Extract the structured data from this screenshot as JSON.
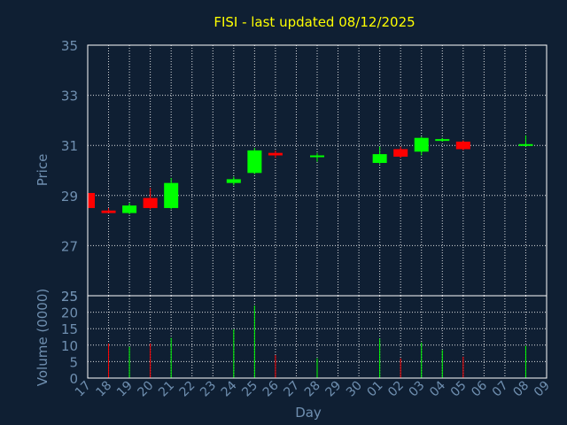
{
  "chart_data": {
    "type": "candlestick",
    "title": "FISI - last updated 08/12/2025",
    "xlabel": "Day",
    "ylabel": "Price",
    "volume_ylabel": "Volume (0000)",
    "x_ticks": [
      "17",
      "18",
      "19",
      "20",
      "21",
      "22",
      "23",
      "24",
      "25",
      "26",
      "27",
      "28",
      "29",
      "30",
      "01",
      "02",
      "03",
      "04",
      "05",
      "06",
      "07",
      "08",
      "09"
    ],
    "price_ticks": [
      27,
      29,
      31,
      33,
      35
    ],
    "price_bottom_tick": 25,
    "price_ylim": [
      25,
      35
    ],
    "volume_ticks": [
      0,
      5,
      10,
      15,
      20,
      25
    ],
    "volume_ylim": [
      0,
      25
    ],
    "up_color": "#00ff00",
    "down_color": "#ff0000",
    "background_color": "#0f1f33",
    "title_color": "#ffff00",
    "grid": true,
    "candles": [
      {
        "day": "17",
        "open": 29.1,
        "close": 28.5,
        "high": 29.1,
        "low": 28.5,
        "volume": 0
      },
      {
        "day": "18",
        "open": 28.4,
        "close": 28.3,
        "high": 28.5,
        "low": 28.3,
        "volume": 10.5
      },
      {
        "day": "19",
        "open": 28.3,
        "close": 28.6,
        "high": 28.7,
        "low": 28.25,
        "volume": 9.5
      },
      {
        "day": "20",
        "open": 28.9,
        "close": 28.5,
        "high": 29.3,
        "low": 28.45,
        "volume": 10.5
      },
      {
        "day": "21",
        "open": 28.5,
        "close": 29.5,
        "high": 29.7,
        "low": 28.45,
        "volume": 12.2
      },
      {
        "day": "24",
        "open": 29.5,
        "close": 29.65,
        "high": 29.75,
        "low": 29.4,
        "volume": 14.8
      },
      {
        "day": "25",
        "open": 29.9,
        "close": 30.8,
        "high": 30.9,
        "low": 29.85,
        "volume": 22
      },
      {
        "day": "26",
        "open": 30.7,
        "close": 30.6,
        "high": 30.8,
        "low": 30.5,
        "volume": 7
      },
      {
        "day": "28",
        "open": 30.55,
        "close": 30.6,
        "high": 30.7,
        "low": 30.35,
        "volume": 6
      },
      {
        "day": "01",
        "open": 30.3,
        "close": 30.65,
        "high": 30.95,
        "low": 30.25,
        "volume": 12
      },
      {
        "day": "02",
        "open": 30.85,
        "close": 30.55,
        "high": 30.95,
        "low": 30.5,
        "volume": 6
      },
      {
        "day": "03",
        "open": 30.75,
        "close": 31.3,
        "high": 31.35,
        "low": 30.6,
        "volume": 10.8
      },
      {
        "day": "04",
        "open": 31.2,
        "close": 31.25,
        "high": 31.3,
        "low": 31.15,
        "volume": 8.5
      },
      {
        "day": "05",
        "open": 31.15,
        "close": 30.85,
        "high": 31.2,
        "low": 30.8,
        "volume": 6.5
      },
      {
        "day": "08",
        "open": 31.0,
        "close": 31.05,
        "high": 31.4,
        "low": 30.95,
        "volume": 9.8
      }
    ]
  }
}
